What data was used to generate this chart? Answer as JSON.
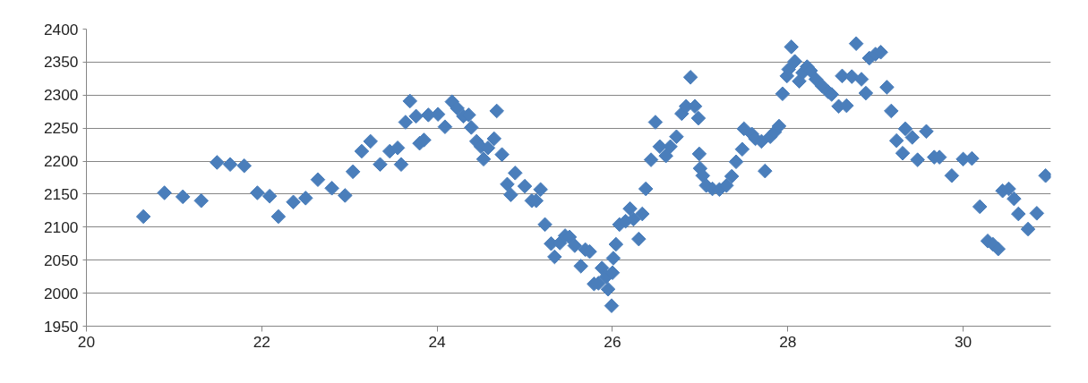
{
  "chart_data": {
    "type": "scatter",
    "marker": "diamond",
    "grid": "y",
    "xlim": [
      20,
      31
    ],
    "xticks": [
      20,
      22,
      24,
      26,
      28,
      30
    ],
    "ylim": [
      1950,
      2400
    ],
    "yticks": [
      1950,
      2000,
      2050,
      2100,
      2150,
      2200,
      2250,
      2300,
      2350,
      2400
    ],
    "series": [
      {
        "color": "#4a7ebb",
        "x": [
          20.65,
          20.89,
          21.1,
          21.31,
          21.49,
          21.64,
          21.8,
          21.95,
          22.09,
          22.19,
          22.36,
          22.5,
          22.64,
          22.8,
          22.95,
          23.04,
          23.14,
          23.24,
          23.35,
          23.46,
          23.55,
          23.59,
          23.64,
          23.69,
          23.76,
          23.8,
          23.85,
          23.9,
          24.01,
          24.09,
          24.17,
          24.23,
          24.3,
          24.36,
          24.39,
          24.45,
          24.5,
          24.53,
          24.58,
          24.65,
          24.68,
          24.74,
          24.8,
          24.84,
          24.89,
          25.0,
          25.08,
          25.13,
          25.18,
          25.23,
          25.3,
          25.34,
          25.4,
          25.46,
          25.51,
          25.57,
          25.64,
          25.69,
          25.74,
          25.79,
          25.84,
          25.88,
          25.93,
          25.95,
          25.99,
          26.0,
          26.01,
          26.04,
          26.08,
          26.15,
          26.2,
          26.24,
          26.3,
          26.34,
          26.38,
          26.44,
          26.49,
          26.54,
          26.61,
          26.66,
          26.73,
          26.79,
          26.84,
          26.89,
          26.94,
          26.98,
          26.99,
          27.0,
          27.03,
          27.07,
          27.14,
          27.22,
          27.3,
          27.36,
          27.41,
          27.48,
          27.5,
          27.59,
          27.63,
          27.7,
          27.74,
          27.8,
          27.85,
          27.9,
          27.94,
          27.99,
          28.01,
          28.04,
          28.08,
          28.13,
          28.17,
          28.22,
          28.26,
          28.32,
          28.39,
          28.46,
          28.5,
          28.58,
          28.62,
          28.67,
          28.73,
          28.78,
          28.84,
          28.89,
          28.93,
          29.0,
          29.06,
          29.13,
          29.18,
          29.24,
          29.31,
          29.34,
          29.42,
          29.48,
          29.58,
          29.67,
          29.73,
          29.87,
          30.0,
          30.1,
          30.19,
          30.28,
          30.34,
          30.4,
          30.45,
          30.52,
          30.58,
          30.63,
          30.74,
          30.84,
          30.94
        ],
        "values": [
          2116,
          2152,
          2146,
          2140,
          2198,
          2195,
          2193,
          2152,
          2147,
          2116,
          2138,
          2144,
          2172,
          2159,
          2148,
          2184,
          2215,
          2230,
          2195,
          2215,
          2220,
          2195,
          2259,
          2291,
          2268,
          2227,
          2232,
          2270,
          2271,
          2252,
          2290,
          2280,
          2268,
          2270,
          2251,
          2230,
          2222,
          2203,
          2220,
          2234,
          2276,
          2210,
          2165,
          2149,
          2182,
          2162,
          2140,
          2140,
          2157,
          2104,
          2075,
          2055,
          2076,
          2087,
          2085,
          2072,
          2041,
          2066,
          2063,
          2014,
          2015,
          2038,
          2025,
          2006,
          1981,
          2031,
          2053,
          2074,
          2104,
          2109,
          2128,
          2112,
          2082,
          2120,
          2158,
          2202,
          2259,
          2222,
          2208,
          2222,
          2237,
          2272,
          2283,
          2327,
          2283,
          2265,
          2211,
          2189,
          2178,
          2163,
          2158,
          2157,
          2163,
          2177,
          2199,
          2218,
          2249,
          2241,
          2234,
          2230,
          2185,
          2237,
          2244,
          2253,
          2302,
          2329,
          2339,
          2373,
          2351,
          2321,
          2334,
          2343,
          2337,
          2324,
          2314,
          2305,
          2301,
          2283,
          2329,
          2284,
          2328,
          2378,
          2324,
          2303,
          2356,
          2362,
          2365,
          2312,
          2276,
          2231,
          2212,
          2249,
          2236,
          2202,
          2245,
          2206,
          2206,
          2178,
          2203,
          2204,
          2131,
          2079,
          2074,
          2067,
          2155,
          2158,
          2143,
          2120,
          2097,
          2121,
          2178
        ]
      }
    ]
  }
}
